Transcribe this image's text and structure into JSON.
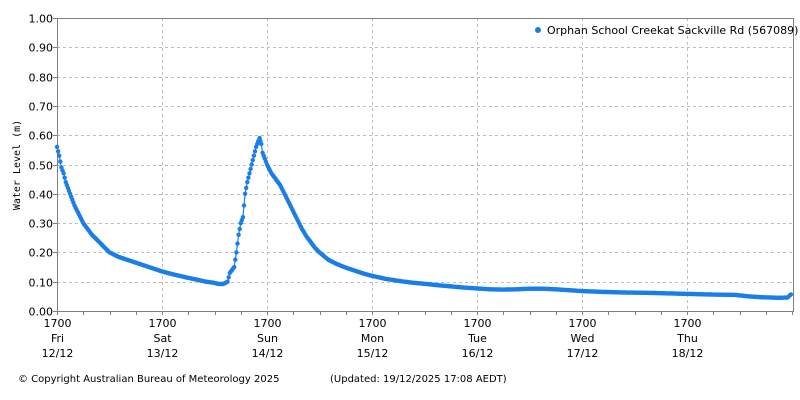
{
  "footer": {
    "copyright": "© Copyright Australian Bureau of Meteorology 2025",
    "updated": "(Updated: 19/12/2025 17:08 AEDT)"
  },
  "colors": {
    "series": "#1a7ee6",
    "grid": "#bdbdbd",
    "axis": "#808080"
  },
  "chart_data": {
    "type": "line",
    "title": "",
    "xlabel": "",
    "ylabel": "Water Level (m)",
    "ylim": [
      0.0,
      1.0
    ],
    "yticks": [
      "0.00",
      "0.10",
      "0.20",
      "0.30",
      "0.40",
      "0.50",
      "0.60",
      "0.70",
      "0.80",
      "0.90",
      "1.00"
    ],
    "grid": true,
    "legend_position": "top-right",
    "xticks": [
      {
        "time": "1700",
        "day": "Fri",
        "date": "12/12"
      },
      {
        "time": "1700",
        "day": "Sat",
        "date": "13/12"
      },
      {
        "time": "1700",
        "day": "Sun",
        "date": "14/12"
      },
      {
        "time": "1700",
        "day": "Mon",
        "date": "15/12"
      },
      {
        "time": "1700",
        "day": "Tue",
        "date": "16/12"
      },
      {
        "time": "1700",
        "day": "Wed",
        "date": "17/12"
      },
      {
        "time": "1700",
        "day": "Thu",
        "date": "18/12"
      }
    ],
    "x_unit": "hours since Fri 12/12 17:00",
    "series": [
      {
        "name": "Orphan School Creekat Sackville Rd (567089)",
        "points": [
          [
            0,
            0.56
          ],
          [
            0.5,
            0.53
          ],
          [
            1,
            0.49
          ],
          [
            1.5,
            0.47
          ],
          [
            2,
            0.44
          ],
          [
            3,
            0.4
          ],
          [
            4,
            0.36
          ],
          [
            5,
            0.33
          ],
          [
            6,
            0.3
          ],
          [
            7,
            0.28
          ],
          [
            8,
            0.26
          ],
          [
            9,
            0.245
          ],
          [
            10,
            0.23
          ],
          [
            11,
            0.215
          ],
          [
            12,
            0.2
          ],
          [
            14,
            0.185
          ],
          [
            16,
            0.175
          ],
          [
            18,
            0.165
          ],
          [
            20,
            0.155
          ],
          [
            22,
            0.145
          ],
          [
            24,
            0.135
          ],
          [
            26,
            0.127
          ],
          [
            28,
            0.12
          ],
          [
            30,
            0.113
          ],
          [
            32,
            0.107
          ],
          [
            34,
            0.1
          ],
          [
            36,
            0.096
          ],
          [
            37,
            0.092
          ],
          [
            38,
            0.092
          ],
          [
            39,
            0.1
          ],
          [
            39.5,
            0.13
          ],
          [
            40,
            0.14
          ],
          [
            40.5,
            0.15
          ],
          [
            41,
            0.2
          ],
          [
            41.5,
            0.26
          ],
          [
            42,
            0.3
          ],
          [
            42.5,
            0.32
          ],
          [
            43,
            0.4
          ],
          [
            43.5,
            0.44
          ],
          [
            44,
            0.47
          ],
          [
            44.5,
            0.5
          ],
          [
            45,
            0.53
          ],
          [
            45.5,
            0.56
          ],
          [
            46,
            0.58
          ],
          [
            46.3,
            0.59
          ],
          [
            46.7,
            0.57
          ],
          [
            47,
            0.54
          ],
          [
            47.5,
            0.52
          ],
          [
            48,
            0.5
          ],
          [
            49,
            0.47
          ],
          [
            50,
            0.45
          ],
          [
            51,
            0.43
          ],
          [
            52,
            0.4
          ],
          [
            53,
            0.37
          ],
          [
            54,
            0.34
          ],
          [
            55,
            0.31
          ],
          [
            56,
            0.28
          ],
          [
            57,
            0.255
          ],
          [
            58,
            0.235
          ],
          [
            59,
            0.215
          ],
          [
            60,
            0.2
          ],
          [
            62,
            0.175
          ],
          [
            64,
            0.16
          ],
          [
            66,
            0.148
          ],
          [
            68,
            0.138
          ],
          [
            70,
            0.128
          ],
          [
            72,
            0.12
          ],
          [
            75,
            0.11
          ],
          [
            78,
            0.103
          ],
          [
            81,
            0.097
          ],
          [
            84,
            0.093
          ],
          [
            87,
            0.088
          ],
          [
            90,
            0.084
          ],
          [
            93,
            0.08
          ],
          [
            96,
            0.077
          ],
          [
            99,
            0.074
          ],
          [
            102,
            0.073
          ],
          [
            105,
            0.074
          ],
          [
            108,
            0.076
          ],
          [
            111,
            0.076
          ],
          [
            114,
            0.074
          ],
          [
            117,
            0.071
          ],
          [
            120,
            0.068
          ],
          [
            125,
            0.065
          ],
          [
            130,
            0.063
          ],
          [
            135,
            0.062
          ],
          [
            140,
            0.06
          ],
          [
            145,
            0.058
          ],
          [
            150,
            0.056
          ],
          [
            155,
            0.055
          ],
          [
            158,
            0.05
          ],
          [
            161,
            0.047
          ],
          [
            163,
            0.046
          ],
          [
            165,
            0.045
          ],
          [
            167,
            0.046
          ],
          [
            168,
            0.06
          ],
          [
            169,
            0.065
          ],
          [
            172,
            0.063
          ],
          [
            175,
            0.065
          ],
          [
            178,
            0.062
          ],
          [
            181,
            0.06
          ],
          [
            184,
            0.058
          ],
          [
            187,
            0.06
          ],
          [
            190,
            0.058
          ]
        ]
      }
    ]
  }
}
